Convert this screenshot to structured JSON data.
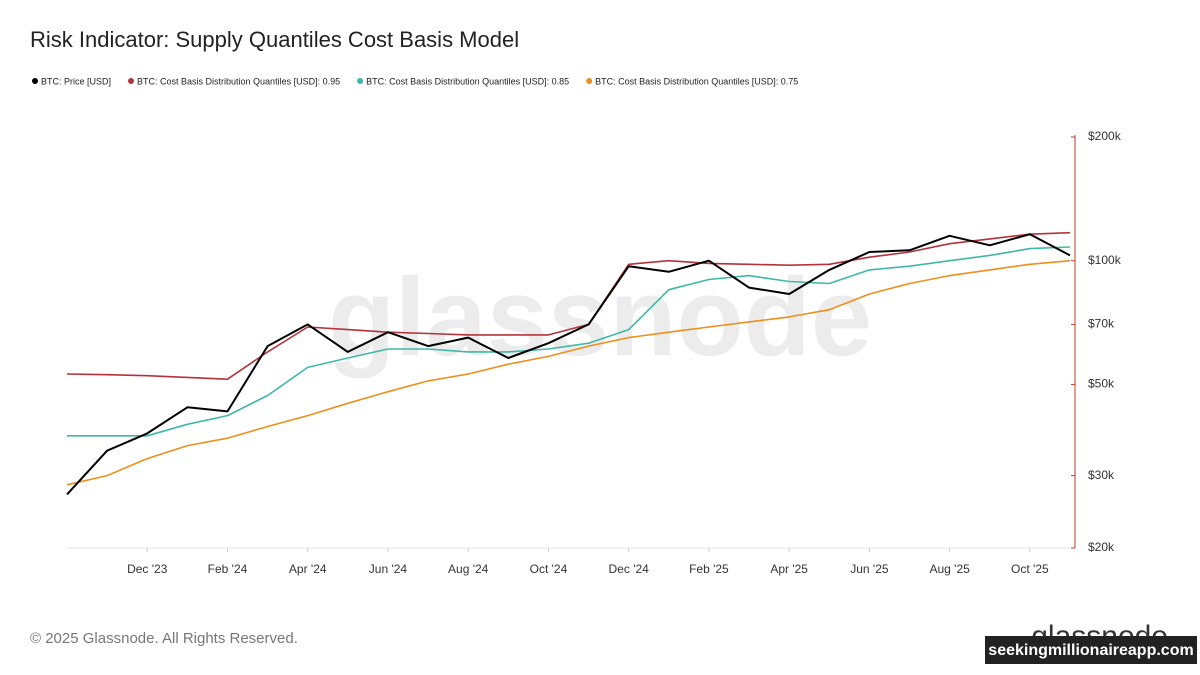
{
  "chart_data": {
    "type": "line",
    "title": "Risk Indicator: Supply Quantiles Cost Basis Model",
    "watermark": "glassnode",
    "footer": "© 2025 Glassnode. All Rights Reserved.",
    "logo": "glassnode",
    "overlay": "seekingmillionaireapp.com",
    "log_scale": true,
    "axis_color": "#c0392b",
    "x": [
      "2023-10",
      "2023-11",
      "2023-12",
      "2024-01",
      "2024-02",
      "2024-03",
      "2024-04",
      "2024-05",
      "2024-06",
      "2024-07",
      "2024-08",
      "2024-09",
      "2024-10",
      "2024-11",
      "2024-12",
      "2025-01",
      "2025-02",
      "2025-03",
      "2025-04",
      "2025-05",
      "2025-06",
      "2025-07",
      "2025-08",
      "2025-09",
      "2025-10",
      "2025-11"
    ],
    "xlim": [
      "2023-10",
      "2025-11"
    ],
    "xticks": [
      {
        "value": "2023-12",
        "label": "Dec '23"
      },
      {
        "value": "2024-02",
        "label": "Feb '24"
      },
      {
        "value": "2024-04",
        "label": "Apr '24"
      },
      {
        "value": "2024-06",
        "label": "Jun '24"
      },
      {
        "value": "2024-08",
        "label": "Aug '24"
      },
      {
        "value": "2024-10",
        "label": "Oct '24"
      },
      {
        "value": "2024-12",
        "label": "Dec '24"
      },
      {
        "value": "2025-02",
        "label": "Feb '25"
      },
      {
        "value": "2025-04",
        "label": "Apr '25"
      },
      {
        "value": "2025-06",
        "label": "Jun '25"
      },
      {
        "value": "2025-08",
        "label": "Aug '25"
      },
      {
        "value": "2025-10",
        "label": "Oct '25"
      }
    ],
    "ylim": [
      20000,
      200000
    ],
    "yticks": [
      {
        "value": 20000,
        "label": "$20k"
      },
      {
        "value": 30000,
        "label": "$30k"
      },
      {
        "value": 50000,
        "label": "$50k"
      },
      {
        "value": 70000,
        "label": "$70k"
      },
      {
        "value": 100000,
        "label": "$100k"
      },
      {
        "value": 200000,
        "label": "$200k"
      }
    ],
    "series": [
      {
        "name": "BTC: Price [USD]",
        "color": "#000000",
        "values": [
          27000,
          34500,
          38000,
          44000,
          43000,
          62000,
          70000,
          60000,
          67000,
          62000,
          65000,
          58000,
          63000,
          70000,
          97000,
          94000,
          100000,
          86000,
          83000,
          95000,
          105000,
          106000,
          115000,
          109000,
          116000,
          103000
        ]
      },
      {
        "name": "BTC: Cost Basis Distribution Quantiles [USD]: 0.95",
        "color": "#b5323c",
        "values": [
          53000,
          52800,
          52500,
          52000,
          51500,
          60000,
          69000,
          68000,
          67000,
          66500,
          66000,
          66000,
          66000,
          70000,
          98000,
          100000,
          98500,
          98000,
          97500,
          98000,
          102000,
          105000,
          110000,
          113000,
          116000,
          117000
        ]
      },
      {
        "name": "BTC: Cost Basis Distribution Quantiles [USD]: 0.85",
        "color": "#3fb8a8",
        "values": [
          37500,
          37500,
          37500,
          40000,
          42000,
          47000,
          55000,
          58000,
          61000,
          61000,
          60000,
          60000,
          61000,
          63000,
          68000,
          85000,
          90000,
          92000,
          89000,
          88000,
          95000,
          97000,
          100000,
          103000,
          107000,
          108000
        ]
      },
      {
        "name": "BTC: Cost Basis Distribution Quantiles [USD]: 0.75",
        "color": "#ee8f1c",
        "values": [
          28500,
          30000,
          33000,
          35500,
          37000,
          39500,
          42000,
          45000,
          48000,
          51000,
          53000,
          56000,
          58500,
          62000,
          65000,
          67000,
          69000,
          71000,
          73000,
          76000,
          83000,
          88000,
          92000,
          95000,
          98000,
          100000
        ]
      }
    ]
  }
}
